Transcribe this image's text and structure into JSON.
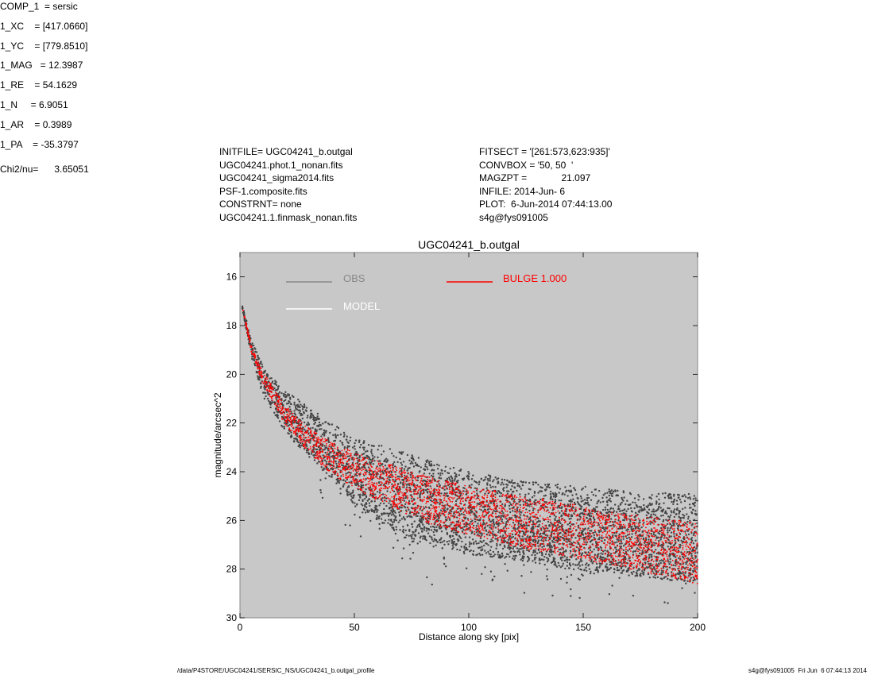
{
  "header": {
    "left": [
      "INITFILE= UGC04241_b.outgal",
      "UGC04241.phot.1_nonan.fits",
      "UGC04241_sigma2014.fits",
      "PSF-1.composite.fits",
      "CONSTRNT= none",
      "UGC04241.1.finmask_nonan.fits"
    ],
    "middle": [
      "FITSECT = '[261:573,623:935]'",
      "CONVBOX = '50, 50  '",
      "MAGZPT =             21.097",
      "INFILE: 2014-Jun- 6",
      "PLOT:  6-Jun-2014 07:44:13.00",
      "s4g@fys091005"
    ]
  },
  "params": [
    "COMP_1  = sersic",
    "1_XC    = [417.0660]",
    "1_YC    = [779.8510]",
    "1_MAG   = 12.3987",
    "1_RE    = 54.1629",
    "1_N     = 6.9051",
    "1_AR    = 0.3989",
    "1_PA    = -35.3797"
  ],
  "chi2": "Chi2/nu=      3.65051",
  "footer": {
    "left": "/data/P4STORE/UGC04241/SERSIC_NS/UGC04241_b.outgal_profile",
    "right": "s4g@fys091005  Fri Jun  6 07:44:13 2014"
  },
  "colors": {
    "plot_background": "#c8c8c8",
    "obs": "#444444",
    "obs_legend": "#888888",
    "model": "#ffffff",
    "bulge": "#ff0000"
  },
  "chart_data": {
    "type": "scatter",
    "title": "UGC04241_b.outgal",
    "xlabel": "Distance along sky [pix]",
    "ylabel": "magnitude/arcsec^2",
    "xlim": [
      0,
      200
    ],
    "ylim": [
      30,
      15
    ],
    "y_inverted": true,
    "xticks": [
      0,
      50,
      100,
      150,
      200
    ],
    "yticks": [
      16,
      18,
      20,
      22,
      24,
      26,
      28,
      30
    ],
    "legend": [
      {
        "name": "OBS",
        "color": "#888888"
      },
      {
        "name": "MODEL",
        "color": "#ffffff"
      },
      {
        "name": "BULGE  1.000",
        "color": "#ff0000"
      }
    ],
    "series": [
      {
        "name": "OBS",
        "color": "#444444",
        "note_values": "approximate envelope of the observed point cloud",
        "x": [
          1,
          5,
          10,
          20,
          30,
          40,
          50,
          75,
          100,
          125,
          150,
          175,
          200
        ],
        "y_bright": [
          17.1,
          18.6,
          19.6,
          20.7,
          21.3,
          22.0,
          22.6,
          23.3,
          24.0,
          24.4,
          24.6,
          24.8,
          24.9
        ],
        "y_faint": [
          17.3,
          19.3,
          20.9,
          22.4,
          23.4,
          24.3,
          25.4,
          26.9,
          27.4,
          27.7,
          28.1,
          28.3,
          28.6
        ]
      },
      {
        "name": "BULGE  1.000",
        "color": "#ff0000",
        "note_values": "approximate upper and lower edges of the model band",
        "x": [
          1,
          5,
          10,
          20,
          30,
          40,
          50,
          75,
          100,
          125,
          150,
          175,
          200
        ],
        "y_upper": [
          17.2,
          18.8,
          19.9,
          21.3,
          22.2,
          22.8,
          23.2,
          24.0,
          24.6,
          25.0,
          25.4,
          25.8,
          26.1
        ],
        "y_lower": [
          17.3,
          19.1,
          20.4,
          22.1,
          23.2,
          24.1,
          24.7,
          25.9,
          26.6,
          27.2,
          27.6,
          28.1,
          28.6
        ]
      }
    ]
  }
}
